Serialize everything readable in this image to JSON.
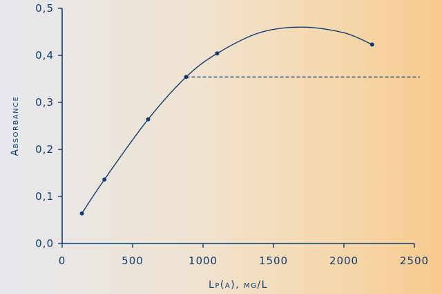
{
  "chart_data": {
    "type": "scatter",
    "xlabel": "Lp(a), mg/L",
    "ylabel": "Absorbance",
    "xlim": [
      0,
      2500
    ],
    "ylim": [
      0,
      0.5
    ],
    "xticks": [
      0,
      500,
      1000,
      1500,
      2000,
      2500
    ],
    "yticks": [
      0,
      0.1,
      0.2,
      0.3,
      0.4,
      0.5
    ],
    "xtick_labels": [
      "0",
      "500",
      "1000",
      "1500",
      "2000",
      "2500"
    ],
    "ytick_labels": [
      "0,0",
      "0,1",
      "0,2",
      "0,3",
      "0,4",
      "0,5"
    ],
    "points": [
      {
        "x": 140,
        "y": 0.064
      },
      {
        "x": 300,
        "y": 0.136
      },
      {
        "x": 610,
        "y": 0.264
      },
      {
        "x": 880,
        "y": 0.354
      },
      {
        "x": 1100,
        "y": 0.404
      },
      {
        "x": 2200,
        "y": 0.423
      }
    ],
    "fit_curve": [
      {
        "x": 140,
        "y": 0.064
      },
      {
        "x": 300,
        "y": 0.136
      },
      {
        "x": 610,
        "y": 0.264
      },
      {
        "x": 880,
        "y": 0.354
      },
      {
        "x": 1100,
        "y": 0.404
      },
      {
        "x": 1400,
        "y": 0.448
      },
      {
        "x": 1700,
        "y": 0.46
      },
      {
        "x": 2000,
        "y": 0.448
      },
      {
        "x": 2200,
        "y": 0.423
      }
    ],
    "reference_line": {
      "y": 0.354,
      "x_start": 880,
      "x_end": 2540,
      "style": "dashed"
    },
    "grid": false,
    "colors": {
      "ink": "#0d3a70"
    }
  }
}
